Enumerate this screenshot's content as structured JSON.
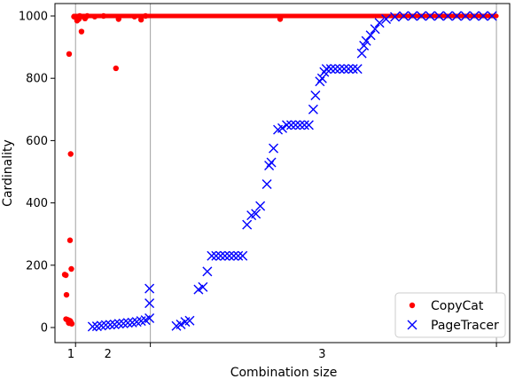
{
  "chart_data": {
    "type": "scatter",
    "xlabel": "Combination size",
    "ylabel": "Cardinality",
    "ylim": [
      0,
      1000
    ],
    "yticks": [
      0,
      200,
      400,
      600,
      800,
      1000
    ],
    "xlim": [
      0,
      100
    ],
    "group_boundaries": [
      1.65,
      18.6,
      97.0
    ],
    "group_labels": [
      {
        "label": "1",
        "x": 0.6
      },
      {
        "label": "2",
        "x": 9.0
      },
      {
        "label": "3",
        "x": 57.5
      }
    ],
    "legend": {
      "position": "lower-right"
    },
    "series": [
      {
        "name": "CopyCat",
        "marker": "dot",
        "color": "#ff0000",
        "points": [
          [
            -0.8,
            170
          ],
          [
            -0.55,
            168
          ],
          [
            -0.4,
            105
          ],
          [
            -0.5,
            27
          ],
          [
            -0.2,
            25
          ],
          [
            0.0,
            24
          ],
          [
            0.1,
            15
          ],
          [
            0.25,
            14
          ],
          [
            0.35,
            22
          ],
          [
            0.5,
            20
          ],
          [
            0.65,
            15
          ],
          [
            0.8,
            12
          ],
          [
            0.2,
            878
          ],
          [
            0.4,
            280
          ],
          [
            0.55,
            557
          ],
          [
            0.7,
            188
          ],
          [
            1.3,
            998
          ],
          [
            1.8,
            994
          ],
          [
            2.0,
            985
          ],
          [
            2.4,
            990
          ],
          [
            2.6,
            1000
          ],
          [
            3.0,
            950
          ],
          [
            3.4,
            998
          ],
          [
            3.8,
            992
          ],
          [
            4.3,
            1000
          ],
          [
            6.0,
            998
          ],
          [
            8.0,
            1000
          ],
          [
            10.8,
            832
          ],
          [
            11.4,
            990
          ],
          [
            15.0,
            998
          ],
          [
            16.5,
            988
          ],
          [
            17.5,
            1000
          ],
          [
            48.0,
            990
          ]
        ],
        "line_segment": {
          "x": [
            1.3,
            97.0
          ],
          "y": 1000
        }
      },
      {
        "name": "PageTracer",
        "marker": "x",
        "color": "#0000ff",
        "points": [
          [
            5.5,
            3
          ],
          [
            6.5,
            4
          ],
          [
            7.5,
            6
          ],
          [
            8.5,
            8
          ],
          [
            9.5,
            9
          ],
          [
            10.5,
            10
          ],
          [
            11.5,
            12
          ],
          [
            12.5,
            13
          ],
          [
            13.5,
            15
          ],
          [
            14.5,
            16
          ],
          [
            15.5,
            18
          ],
          [
            16.5,
            21
          ],
          [
            17.5,
            24
          ],
          [
            18.4,
            30
          ],
          [
            18.4,
            78
          ],
          [
            18.4,
            125
          ],
          [
            24.5,
            5
          ],
          [
            25.5,
            10
          ],
          [
            26.5,
            18
          ],
          [
            27.5,
            22
          ],
          [
            29.5,
            122
          ],
          [
            30.5,
            130
          ],
          [
            31.5,
            180
          ],
          [
            32.5,
            230
          ],
          [
            33.5,
            230
          ],
          [
            34.5,
            230
          ],
          [
            35.5,
            230
          ],
          [
            36.5,
            230
          ],
          [
            37.5,
            230
          ],
          [
            38.5,
            230
          ],
          [
            39.5,
            230
          ],
          [
            40.5,
            330
          ],
          [
            41.5,
            360
          ],
          [
            42.5,
            365
          ],
          [
            43.5,
            390
          ],
          [
            45.0,
            460
          ],
          [
            45.5,
            520
          ],
          [
            46.0,
            530
          ],
          [
            46.5,
            575
          ],
          [
            47.5,
            635
          ],
          [
            48.5,
            640
          ],
          [
            49.5,
            650
          ],
          [
            50.5,
            650
          ],
          [
            51.5,
            650
          ],
          [
            52.5,
            650
          ],
          [
            53.5,
            650
          ],
          [
            54.5,
            650
          ],
          [
            55.5,
            700
          ],
          [
            56.0,
            745
          ],
          [
            57.0,
            790
          ],
          [
            57.5,
            800
          ],
          [
            58.0,
            820
          ],
          [
            58.5,
            830
          ],
          [
            59.5,
            830
          ],
          [
            60.5,
            830
          ],
          [
            61.5,
            830
          ],
          [
            62.5,
            830
          ],
          [
            63.5,
            830
          ],
          [
            64.5,
            830
          ],
          [
            65.5,
            830
          ],
          [
            66.5,
            880
          ],
          [
            67.0,
            905
          ],
          [
            67.5,
            920
          ],
          [
            68.5,
            938
          ],
          [
            69.5,
            958
          ],
          [
            70.5,
            978
          ],
          [
            72.0,
            990
          ],
          [
            74.0,
            997
          ],
          [
            76.0,
            1000
          ],
          [
            78.0,
            1000
          ],
          [
            80.0,
            1000
          ],
          [
            82.0,
            1000
          ],
          [
            84.0,
            1000
          ],
          [
            86.0,
            1000
          ],
          [
            88.0,
            1000
          ],
          [
            90.0,
            1000
          ],
          [
            92.0,
            1000
          ],
          [
            94.0,
            1000
          ],
          [
            96.0,
            1000
          ]
        ]
      }
    ]
  }
}
